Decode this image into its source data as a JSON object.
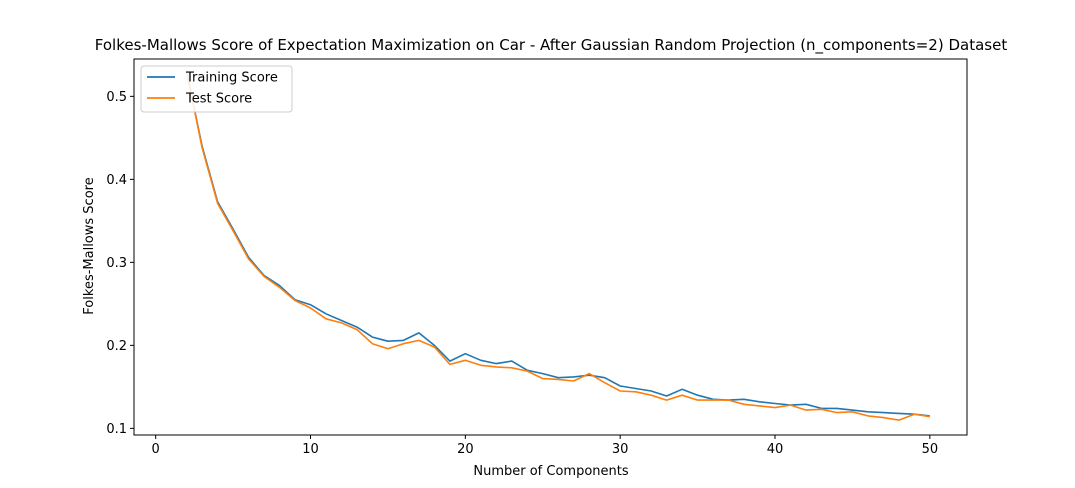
{
  "chart_data": {
    "type": "line",
    "title": "Folkes-Mallows Score of Expectation Maximization on Car - After Gaussian Random Projection (n_components=2) Dataset",
    "xlabel": "Number of Components",
    "ylabel": "Folkes-Mallows Score",
    "xlim": [
      -1.4,
      52.4
    ],
    "ylim": [
      0.092,
      0.545
    ],
    "xticks": [
      0,
      10,
      20,
      30,
      40,
      50
    ],
    "yticks": [
      0.1,
      0.2,
      0.3,
      0.4,
      0.5
    ],
    "yticklabels": [
      "0.1",
      "0.2",
      "0.3",
      "0.4",
      "0.5"
    ],
    "legend_position": "upper left",
    "x": [
      2,
      3,
      4,
      5,
      6,
      7,
      8,
      9,
      10,
      11,
      12,
      13,
      14,
      15,
      16,
      17,
      18,
      19,
      20,
      21,
      22,
      23,
      24,
      25,
      26,
      27,
      28,
      29,
      30,
      31,
      32,
      33,
      34,
      35,
      36,
      37,
      38,
      39,
      40,
      41,
      42,
      43,
      44,
      45,
      46,
      47,
      48,
      49,
      50
    ],
    "series": [
      {
        "name": "Training Score",
        "color": "#1f77b4",
        "values": [
          0.53,
          0.44,
          0.373,
          0.34,
          0.306,
          0.284,
          0.272,
          0.255,
          0.249,
          0.238,
          0.23,
          0.222,
          0.21,
          0.205,
          0.206,
          0.215,
          0.2,
          0.181,
          0.19,
          0.182,
          0.178,
          0.181,
          0.17,
          0.166,
          0.161,
          0.162,
          0.164,
          0.161,
          0.151,
          0.148,
          0.145,
          0.139,
          0.147,
          0.14,
          0.135,
          0.134,
          0.135,
          0.132,
          0.13,
          0.128,
          0.129,
          0.124,
          0.124,
          0.122,
          0.12,
          0.119,
          0.118,
          0.117,
          0.115
        ]
      },
      {
        "name": "Test Score",
        "color": "#ff7f0e",
        "values": [
          0.53,
          0.438,
          0.371,
          0.338,
          0.304,
          0.283,
          0.27,
          0.254,
          0.245,
          0.232,
          0.227,
          0.219,
          0.202,
          0.196,
          0.202,
          0.206,
          0.198,
          0.177,
          0.182,
          0.176,
          0.174,
          0.173,
          0.169,
          0.16,
          0.159,
          0.157,
          0.166,
          0.155,
          0.145,
          0.144,
          0.14,
          0.134,
          0.14,
          0.134,
          0.134,
          0.134,
          0.129,
          0.127,
          0.125,
          0.128,
          0.122,
          0.123,
          0.119,
          0.12,
          0.115,
          0.113,
          0.11,
          0.117,
          0.114
        ]
      }
    ]
  }
}
